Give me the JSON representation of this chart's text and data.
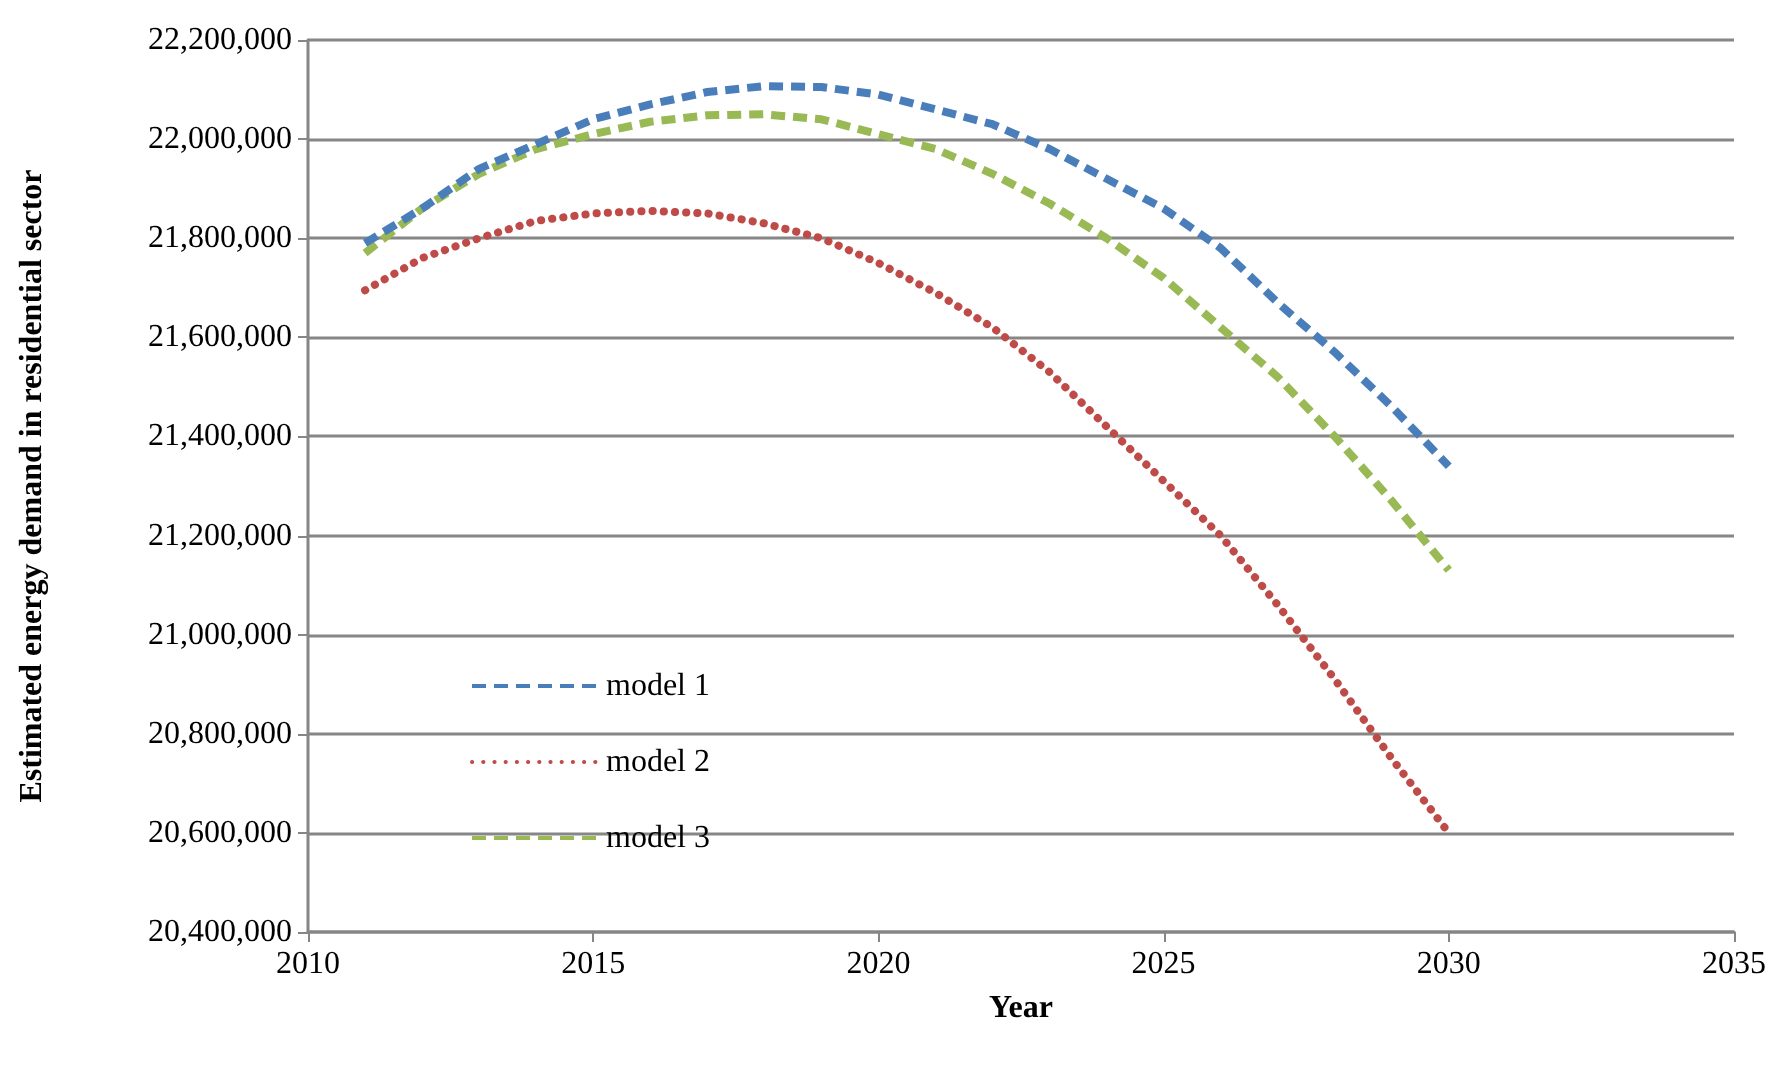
{
  "chart_data": {
    "type": "line",
    "xlabel": "Year",
    "ylabel": "Estimated energy demand in residential sector",
    "x": [
      2011,
      2012,
      2013,
      2014,
      2015,
      2016,
      2017,
      2018,
      2019,
      2020,
      2021,
      2022,
      2023,
      2024,
      2025,
      2026,
      2027,
      2028,
      2029,
      2030
    ],
    "series": [
      {
        "name": "model 1",
        "color": "#4a7ebb",
        "line_style": "dashed",
        "values": [
          21790000,
          21860000,
          21940000,
          21990000,
          22040000,
          22070000,
          22095000,
          22107000,
          22105000,
          22090000,
          22060000,
          22030000,
          21980000,
          21920000,
          21860000,
          21780000,
          21670000,
          21570000,
          21460000,
          21340000
        ]
      },
      {
        "name": "model 2",
        "color": "#be4b48",
        "line_style": "dotted",
        "values": [
          21695000,
          21760000,
          21800000,
          21835000,
          21850000,
          21855000,
          21850000,
          21830000,
          21800000,
          21750000,
          21690000,
          21620000,
          21530000,
          21420000,
          21310000,
          21200000,
          21060000,
          20910000,
          20750000,
          20600000
        ]
      },
      {
        "name": "model 3",
        "color": "#98b954",
        "line_style": "dashed",
        "values": [
          21770000,
          21860000,
          21930000,
          21980000,
          22010000,
          22035000,
          22048000,
          22050000,
          22040000,
          22010000,
          21980000,
          21930000,
          21870000,
          21800000,
          21720000,
          21620000,
          21520000,
          21400000,
          21270000,
          21130000
        ]
      }
    ],
    "xlim": [
      2010,
      2035
    ],
    "xticks": [
      2010,
      2015,
      2020,
      2025,
      2030,
      2035
    ],
    "ylim": [
      20400000,
      22200000
    ],
    "yticks": [
      {
        "value": 20400000,
        "label": "20,400,000"
      },
      {
        "value": 20600000,
        "label": "20,600,000"
      },
      {
        "value": 20800000,
        "label": "20,800,000"
      },
      {
        "value": 21000000,
        "label": "21,000,000"
      },
      {
        "value": 21200000,
        "label": "21,200,000"
      },
      {
        "value": 21400000,
        "label": "21,400,000"
      },
      {
        "value": 21600000,
        "label": "21,600,000"
      },
      {
        "value": 21800000,
        "label": "21,800,000"
      },
      {
        "value": 22000000,
        "label": "22,000,000"
      },
      {
        "value": 22200000,
        "label": "22,200,000"
      }
    ],
    "grid": "y",
    "legend": "bottom left",
    "marker": "none"
  }
}
